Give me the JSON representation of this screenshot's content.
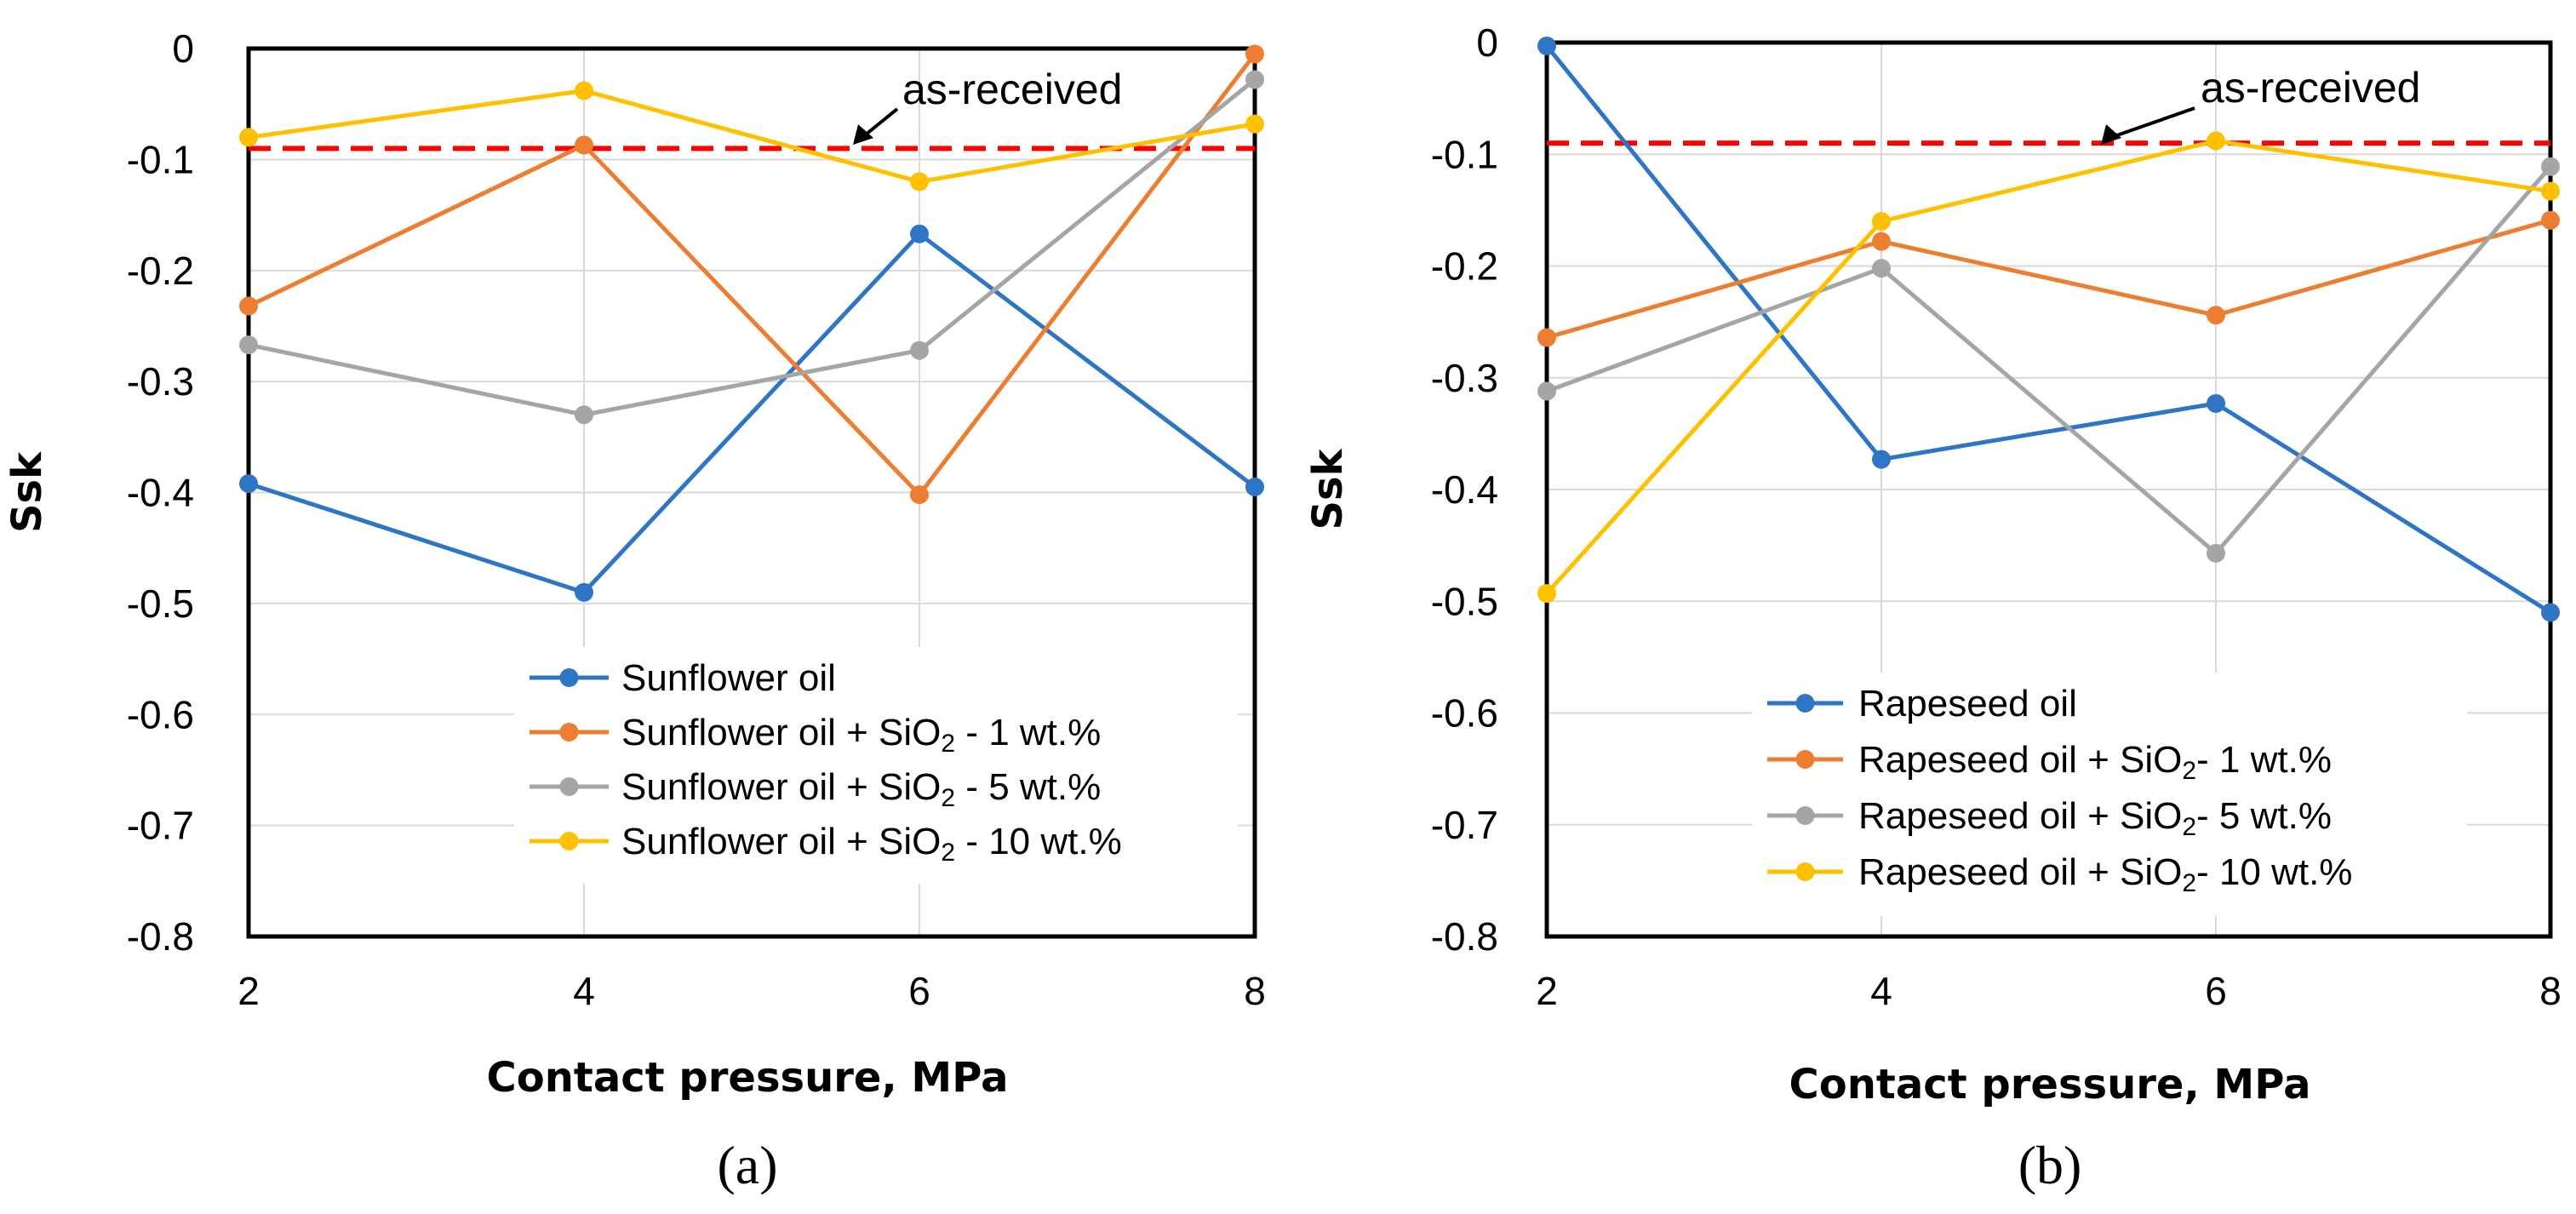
{
  "chart_data": [
    {
      "type": "line",
      "panel": "(a)",
      "xlabel": "Contact pressure, MPa",
      "ylabel": "Ssk",
      "x": [
        2,
        4,
        6,
        8
      ],
      "x_ticks": [
        "2",
        "4",
        "6",
        "8"
      ],
      "ylim": [
        -0.8,
        0
      ],
      "y_ticks": [
        "0",
        "-0.1",
        "-0.2",
        "-0.3",
        "-0.4",
        "-0.5",
        "-0.6",
        "-0.7",
        "-0.8"
      ],
      "grid": true,
      "legend_position": "bottom-right",
      "reference_line": {
        "label": "as-received",
        "value": -0.09,
        "color": "#ff0000"
      },
      "series": [
        {
          "name": "Sunflower oil",
          "legend_main": "Sunflower oil",
          "legend_sub": "",
          "legend_tail": "",
          "color": "#2e75c6",
          "values": [
            -0.392,
            -0.49,
            -0.167,
            -0.395
          ]
        },
        {
          "name": "Sunflower oil + SiO2 - 1 wt.%",
          "legend_main": "Sunflower oil + SiO",
          "legend_sub": "2",
          "legend_tail": " - 1 wt.%",
          "color": "#ed7d31",
          "values": [
            -0.232,
            -0.087,
            -0.402,
            -0.005
          ]
        },
        {
          "name": "Sunflower oil + SiO2 - 5 wt.%",
          "legend_main": "Sunflower oil + SiO",
          "legend_sub": "2",
          "legend_tail": " - 5 wt.%",
          "color": "#a5a5a5",
          "values": [
            -0.267,
            -0.33,
            -0.272,
            -0.028
          ]
        },
        {
          "name": "Sunflower oil + SiO2 - 10 wt.%",
          "legend_main": "Sunflower oil + SiO",
          "legend_sub": "2",
          "legend_tail": " - 10 wt.%",
          "color": "#ffc000",
          "values": [
            -0.08,
            -0.038,
            -0.12,
            -0.068
          ]
        }
      ]
    },
    {
      "type": "line",
      "panel": "(b)",
      "xlabel": "Contact pressure, MPa",
      "ylabel": "Ssk",
      "x": [
        2,
        4,
        6,
        8
      ],
      "x_ticks": [
        "2",
        "4",
        "6",
        "8"
      ],
      "ylim": [
        -0.8,
        0
      ],
      "y_ticks": [
        "0",
        "-0.1",
        "-0.2",
        "-0.3",
        "-0.4",
        "-0.5",
        "-0.6",
        "-0.7",
        "-0.8"
      ],
      "grid": true,
      "legend_position": "bottom-right",
      "reference_line": {
        "label": "as-received",
        "value": -0.09,
        "color": "#ff0000"
      },
      "series": [
        {
          "name": "Rapeseed oil",
          "legend_main": "Rapeseed oil",
          "legend_sub": "",
          "legend_tail": "",
          "color": "#2e75c6",
          "values": [
            -0.003,
            -0.373,
            -0.323,
            -0.51
          ]
        },
        {
          "name": "Rapeseed oil + SiO2- 1 wt.%",
          "legend_main": "Rapeseed oil + SiO",
          "legend_sub": "2",
          "legend_tail": "- 1 wt.%",
          "color": "#ed7d31",
          "values": [
            -0.264,
            -0.178,
            -0.244,
            -0.159
          ]
        },
        {
          "name": "Rapeseed oil + SiO2- 5 wt.%",
          "legend_main": "Rapeseed oil + SiO",
          "legend_sub": "2",
          "legend_tail": "- 5 wt.%",
          "color": "#a5a5a5",
          "values": [
            -0.312,
            -0.202,
            -0.457,
            -0.111
          ]
        },
        {
          "name": "Rapeseed oil + SiO2- 10 wt.%",
          "legend_main": "Rapeseed oil + SiO",
          "legend_sub": "2",
          "legend_tail": "- 10 wt.%",
          "color": "#ffc000",
          "values": [
            -0.493,
            -0.16,
            -0.088,
            -0.133
          ]
        }
      ]
    }
  ]
}
